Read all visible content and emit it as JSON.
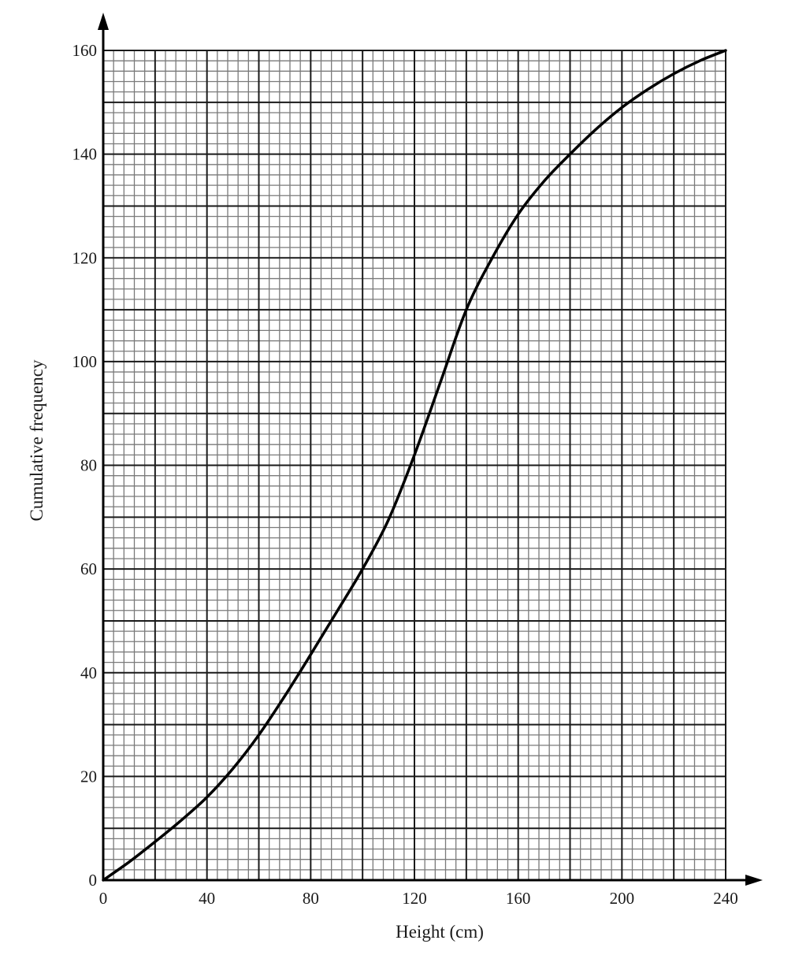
{
  "chart_data": {
    "type": "line",
    "title": "",
    "xlabel": "Height (cm)",
    "ylabel": "Cumulative frequency",
    "xlim": [
      0,
      240
    ],
    "ylim": [
      0,
      160
    ],
    "x_ticks": [
      0,
      40,
      80,
      120,
      160,
      200,
      240
    ],
    "y_ticks": [
      0,
      20,
      40,
      60,
      80,
      100,
      120,
      140,
      160
    ],
    "grid": {
      "on": true,
      "x_major_step": 20,
      "x_minor_step": 4,
      "y_major_step": 10,
      "y_minor_step": 2
    },
    "legend": null,
    "series": [
      {
        "name": "Cumulative frequency curve",
        "x": [
          0,
          10,
          20,
          30,
          40,
          50,
          60,
          70,
          80,
          90,
          100,
          110,
          120,
          130,
          140,
          150,
          160,
          170,
          180,
          190,
          200,
          210,
          220,
          230,
          240
        ],
        "y": [
          0,
          3.5,
          7.4,
          11.5,
          16,
          21.5,
          28,
          35.5,
          43.5,
          51.7,
          60,
          69.5,
          82,
          96,
          110,
          120,
          128.4,
          134.8,
          140,
          144.8,
          149,
          152.5,
          155.5,
          158,
          160
        ]
      }
    ]
  },
  "axes": {
    "x_title": "Height (cm)",
    "y_title": "Cumulative frequency"
  },
  "colors": {
    "curve": "#000000",
    "major_grid": "#1a1a1a",
    "minor_grid": "#7a7a7a",
    "axis": "#000000"
  }
}
